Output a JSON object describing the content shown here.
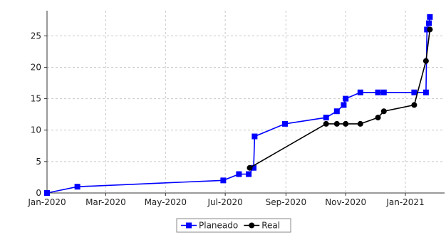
{
  "chart_data": {
    "type": "line",
    "title": "",
    "xlabel": "",
    "ylabel": "",
    "x_axis": {
      "type": "date",
      "range": [
        "2020-01-01",
        "2021-02-10"
      ],
      "tick_dates": [
        "2020-01-01",
        "2020-03-01",
        "2020-05-01",
        "2020-07-01",
        "2020-09-01",
        "2020-11-01",
        "2021-01-01"
      ],
      "tick_labels": [
        "Jan-2020",
        "Mar-2020",
        "May-2020",
        "Jul-2020",
        "Sep-2020",
        "Nov-2020",
        "Jan-2021"
      ]
    },
    "y_axis": {
      "range": [
        0,
        29
      ],
      "ticks": [
        0,
        5,
        10,
        15,
        20,
        25
      ],
      "tick_labels": [
        "0",
        "5",
        "10",
        "15",
        "20",
        "25"
      ]
    },
    "grid": true,
    "legend_position": "bottom-center",
    "series": [
      {
        "name": "Planeado",
        "color": "#0000ff",
        "marker": "square",
        "points": [
          {
            "x": "2020-01-01",
            "y": 0
          },
          {
            "x": "2020-02-01",
            "y": 1
          },
          {
            "x": "2020-06-29",
            "y": 2
          },
          {
            "x": "2020-07-15",
            "y": 3
          },
          {
            "x": "2020-07-25",
            "y": 3
          },
          {
            "x": "2020-07-30",
            "y": 4
          },
          {
            "x": "2020-07-31",
            "y": 9
          },
          {
            "x": "2020-08-31",
            "y": 11
          },
          {
            "x": "2020-10-12",
            "y": 12
          },
          {
            "x": "2020-10-23",
            "y": 13
          },
          {
            "x": "2020-10-30",
            "y": 14
          },
          {
            "x": "2020-11-01",
            "y": 15
          },
          {
            "x": "2020-11-16",
            "y": 16
          },
          {
            "x": "2020-12-04",
            "y": 16
          },
          {
            "x": "2020-12-10",
            "y": 16
          },
          {
            "x": "2021-01-10",
            "y": 16
          },
          {
            "x": "2021-01-22",
            "y": 16
          },
          {
            "x": "2021-01-23",
            "y": 26
          },
          {
            "x": "2021-01-25",
            "y": 27
          },
          {
            "x": "2021-01-26",
            "y": 28
          }
        ]
      },
      {
        "name": "Real",
        "color": "#000000",
        "marker": "circle",
        "points": [
          {
            "x": "2020-07-26",
            "y": 4
          },
          {
            "x": "2020-10-12",
            "y": 11
          },
          {
            "x": "2020-10-23",
            "y": 11
          },
          {
            "x": "2020-11-01",
            "y": 11
          },
          {
            "x": "2020-11-16",
            "y": 11
          },
          {
            "x": "2020-12-04",
            "y": 12
          },
          {
            "x": "2020-12-10",
            "y": 13
          },
          {
            "x": "2021-01-10",
            "y": 14
          },
          {
            "x": "2021-01-22",
            "y": 21
          },
          {
            "x": "2021-01-26",
            "y": 26
          }
        ]
      }
    ]
  }
}
